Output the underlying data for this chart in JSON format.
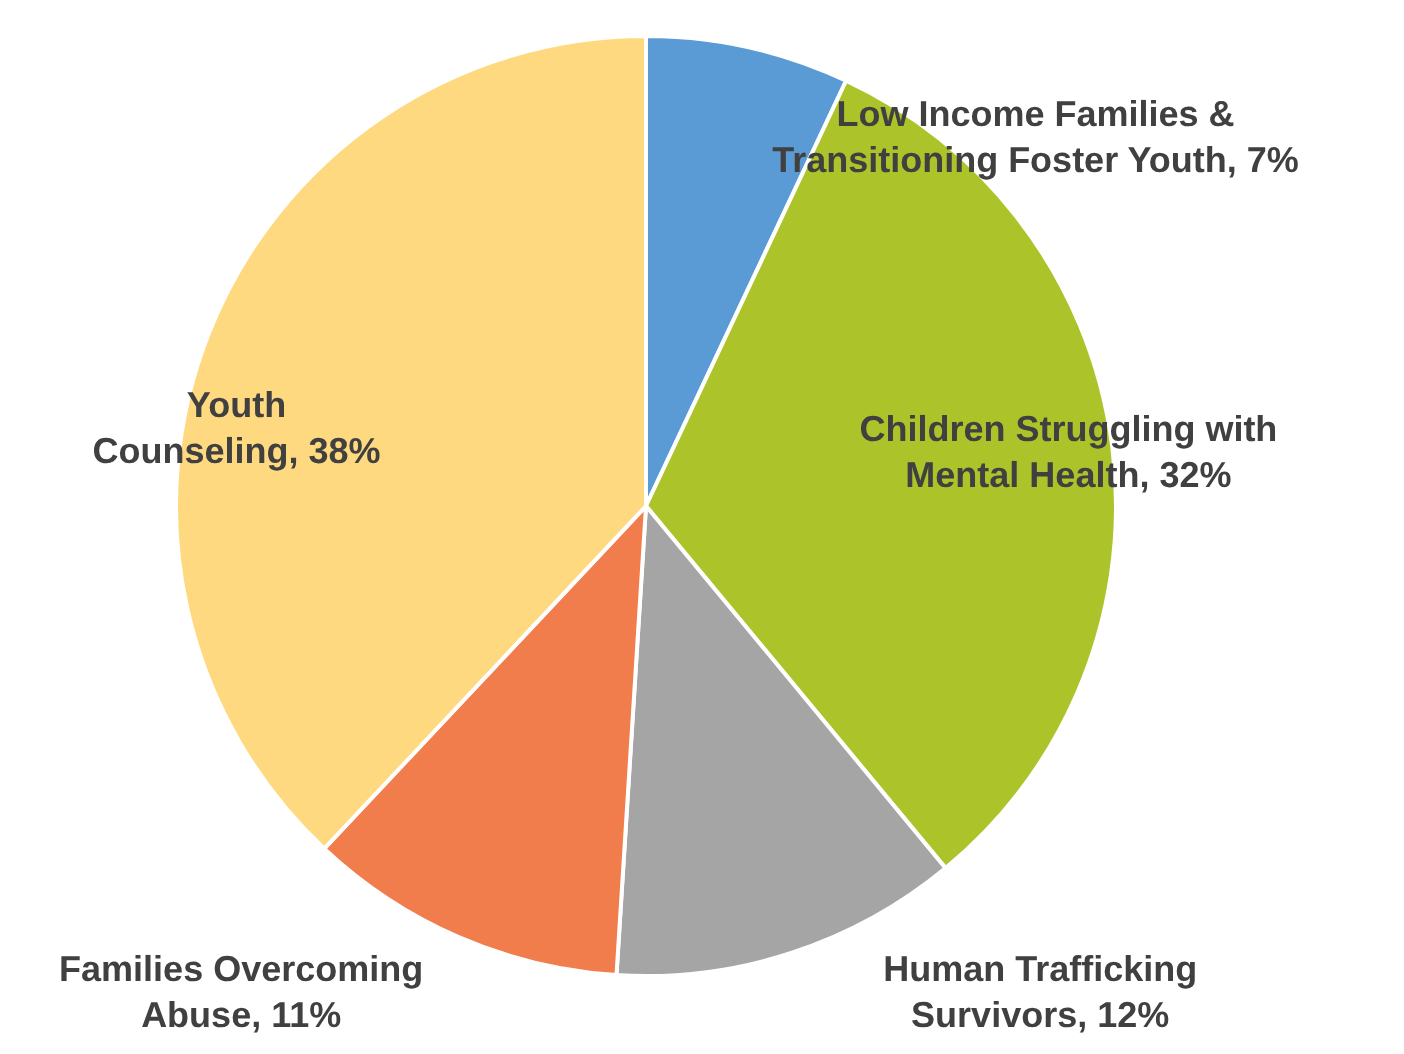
{
  "chart_data": {
    "type": "pie",
    "categories": [
      "Low Income Families & Transitioning Foster Youth",
      "Children Struggling with Mental Health",
      "Human Trafficking Survivors",
      "Families Overcoming Abuse",
      "Youth Counseling"
    ],
    "values": [
      7,
      32,
      12,
      11,
      38
    ],
    "value_labels": [
      "7%",
      "32%",
      "12%",
      "11%",
      "38%"
    ],
    "colors": [
      "#5b9bd5",
      "#acc42a",
      "#a5a5a5",
      "#f07d4b",
      "#ffd97f"
    ],
    "legend": false
  }
}
